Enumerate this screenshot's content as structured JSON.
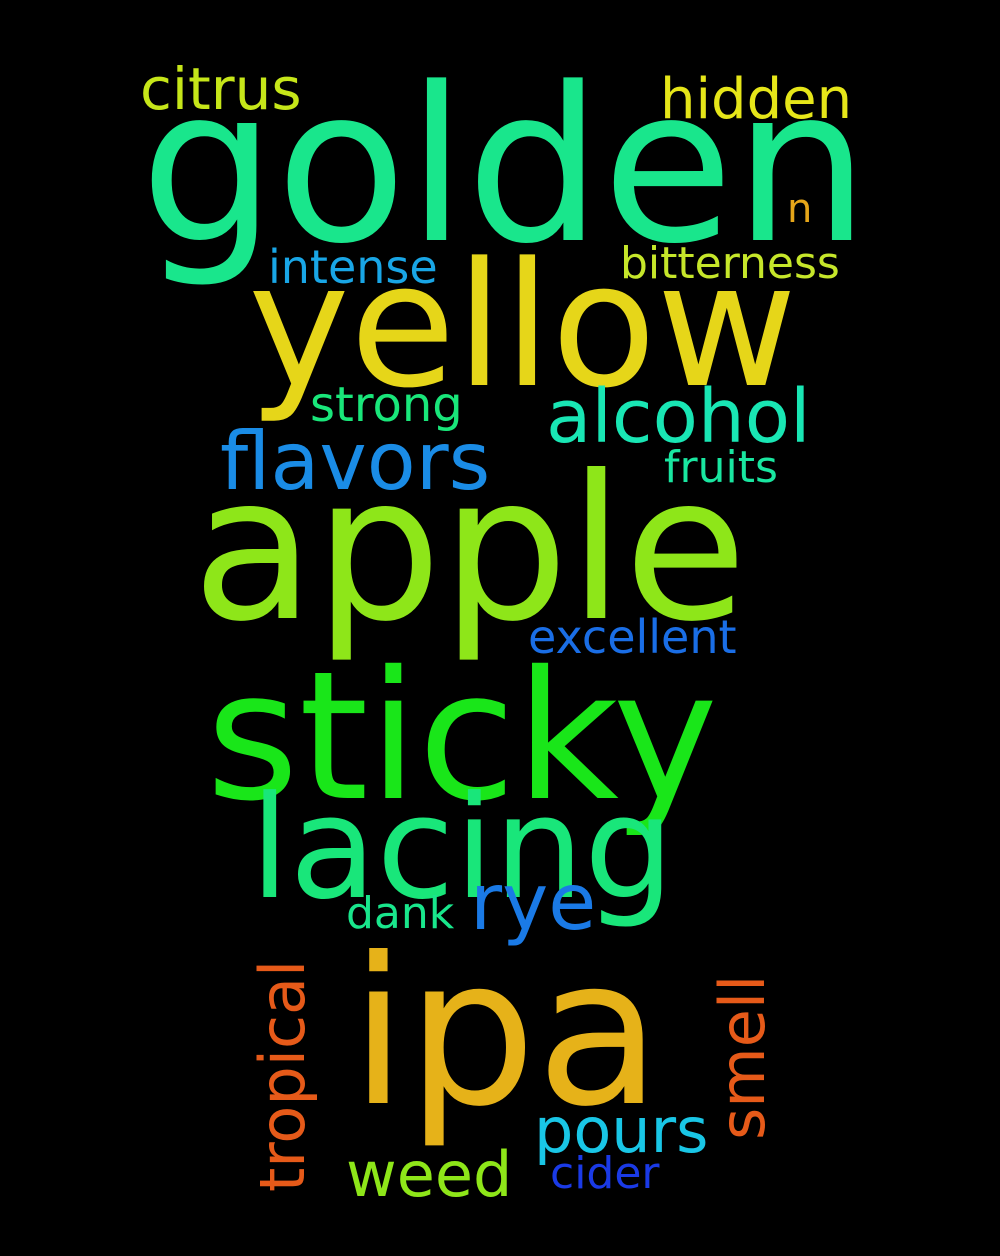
{
  "words": [
    {
      "text": "golden",
      "color": "#19e68c"
    },
    {
      "text": "yellow",
      "color": "#e6d619"
    },
    {
      "text": "apple",
      "color": "#8ee619"
    },
    {
      "text": "sticky",
      "color": "#19e619"
    },
    {
      "text": "lacing",
      "color": "#19e67a"
    },
    {
      "text": "ipa",
      "color": "#e6b219"
    },
    {
      "text": "citrus",
      "color": "#c6e619"
    },
    {
      "text": "hidden",
      "color": "#e6e619"
    },
    {
      "text": "n",
      "color": "#e6a619"
    },
    {
      "text": "intense",
      "color": "#19a6e6"
    },
    {
      "text": "bitterness",
      "color": "#c6e62a"
    },
    {
      "text": "alcohol",
      "color": "#19e6b4"
    },
    {
      "text": "strong",
      "color": "#19e67a"
    },
    {
      "text": "flavors",
      "color": "#1a8ce6"
    },
    {
      "text": "fruits",
      "color": "#19e6a0"
    },
    {
      "text": "excellent",
      "color": "#1a6ee6"
    },
    {
      "text": "rye",
      "color": "#1a7ae6"
    },
    {
      "text": "dank",
      "color": "#19e68c"
    },
    {
      "text": "tropical",
      "color": "#e65a19"
    },
    {
      "text": "smell",
      "color": "#e65a19"
    },
    {
      "text": "pours",
      "color": "#19c6e6"
    },
    {
      "text": "weed",
      "color": "#8ee619"
    },
    {
      "text": "cider",
      "color": "#1a3ae6"
    }
  ]
}
